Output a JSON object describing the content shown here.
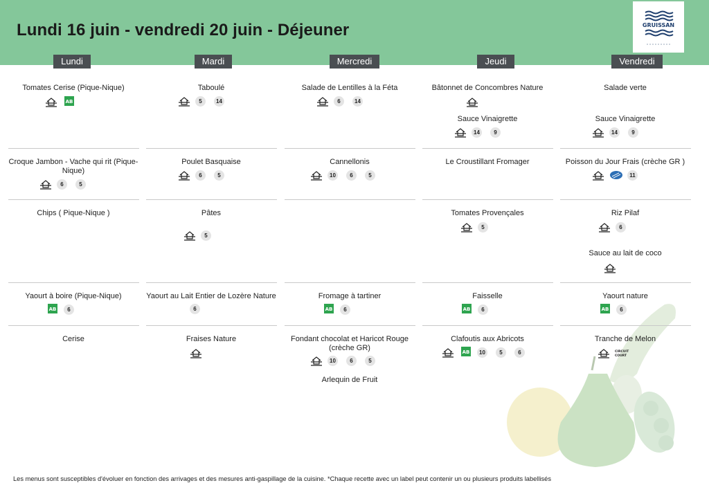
{
  "title": "Lundi 16 juin - vendredi 20 juin  - Déjeuner",
  "logo_text": "GRUISSAN",
  "days": [
    "Lundi",
    "Mardi",
    "Mercredi",
    "Jeudi",
    "Vendredi"
  ],
  "menu": {
    "lundi": {
      "entree": {
        "name": "Tomates Cerise (Pique-Nique)",
        "badges": []
      },
      "plat": {
        "name": "Croque Jambon - Vache qui rit (Pique-Nique)",
        "badges": [
          "6",
          "5"
        ]
      },
      "accompagnement": {
        "name": "Chips ( Pique-Nique )",
        "badges": []
      },
      "laitage": {
        "name": "Yaourt à boire (Pique-Nique)",
        "badges": [
          "6"
        ]
      },
      "dessert": {
        "name": "Cerise",
        "badges": []
      }
    },
    "mardi": {
      "entree": {
        "name": "Taboulé",
        "badges": [
          "5",
          "14"
        ]
      },
      "plat": {
        "name": "Poulet Basquaise",
        "badges": [
          "6",
          "5"
        ]
      },
      "accompagnement": {
        "name": "Pâtes",
        "badges": [
          "5"
        ]
      },
      "laitage": {
        "name": "Yaourt au Lait Entier de Lozère Nature",
        "badges": [
          "6"
        ]
      },
      "dessert": {
        "name": "Fraises Nature",
        "badges": []
      }
    },
    "mercredi": {
      "entree": {
        "name": "Salade de Lentilles à la Féta",
        "badges": [
          "6",
          "14"
        ]
      },
      "plat": {
        "name": "Cannellonis",
        "badges": [
          "10",
          "6",
          "5"
        ]
      },
      "laitage": {
        "name": "Fromage à tartiner",
        "badges": [
          "6"
        ]
      },
      "dessert": {
        "name": "Fondant chocolat et Haricot Rouge (crèche GR)",
        "badges": [
          "10",
          "6",
          "5"
        ]
      },
      "dessert2": {
        "name": "Arlequin de Fruit",
        "badges": []
      }
    },
    "jeudi": {
      "entree": {
        "name": "Bâtonnet de Concombres Nature",
        "badges": []
      },
      "sauce": {
        "name": "Sauce Vinaigrette",
        "badges": [
          "14",
          "9"
        ]
      },
      "plat": {
        "name": "Le Croustillant Fromager",
        "badges": []
      },
      "accompagnement": {
        "name": "Tomates Provençales",
        "badges": [
          "5"
        ]
      },
      "laitage": {
        "name": "Faisselle",
        "badges": [
          "6"
        ]
      },
      "dessert": {
        "name": "Clafoutis aux Abricots",
        "badges": [
          "10",
          "5",
          "6"
        ]
      }
    },
    "vendredi": {
      "entree": {
        "name": "Salade verte",
        "badges": []
      },
      "sauce": {
        "name": "Sauce Vinaigrette",
        "badges": [
          "14",
          "9"
        ]
      },
      "plat": {
        "name": "Poisson du Jour Frais (crèche GR )",
        "badges": [
          "11"
        ]
      },
      "accompagnement": {
        "name": "Riz Pilaf",
        "badges": [
          "6"
        ]
      },
      "sauce2": {
        "name": "Sauce au lait de coco",
        "badges": []
      },
      "laitage": {
        "name": "Yaourt nature",
        "badges": [
          "6"
        ]
      },
      "dessert": {
        "name": "Tranche de Melon",
        "badges": []
      }
    }
  },
  "labels": {
    "bio": "AB",
    "circuit_court": "CIRCUIT COURT"
  },
  "footer": "Les menus sont susceptibles d'évoluer en fonction des arrivages et des mesures anti-gaspillage de la cuisine. *Chaque recette avec un label peut contenir un ou plusieurs produits labellisés",
  "colors": {
    "header": "#84c79a",
    "day_tab": "#4a4e52",
    "bio": "#2ea44f",
    "logo": "#1f3f6e"
  }
}
